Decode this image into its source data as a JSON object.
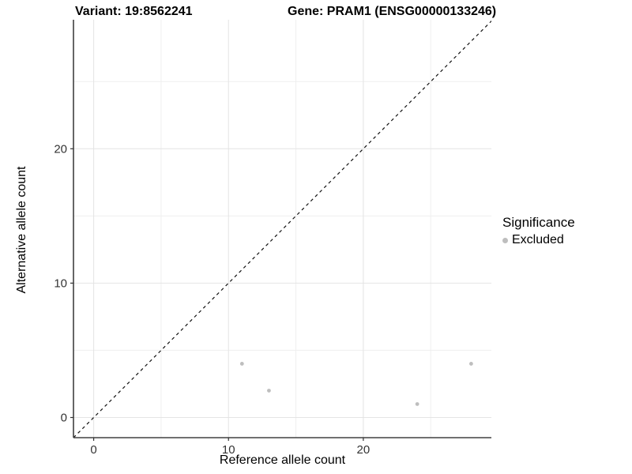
{
  "chart_data": {
    "type": "scatter",
    "titles": {
      "variant": "Variant: 19:8562241",
      "gene": "Gene: PRAM1 (ENSG00000133246)"
    },
    "xlabel": "Reference allele count",
    "ylabel": "Alternative allele count",
    "xlim": [
      -1.5,
      29.5
    ],
    "ylim": [
      -1.5,
      29.6
    ],
    "x_ticks": [
      0,
      10,
      20
    ],
    "y_ticks": [
      0,
      10,
      20
    ],
    "grid_major": [
      0,
      10,
      20
    ],
    "grid_minor": [
      5,
      15,
      25
    ],
    "grid_on": true,
    "series": [
      {
        "name": "Excluded",
        "color": "#BEBEBE",
        "points": [
          {
            "x": 11,
            "y": 4
          },
          {
            "x": 13,
            "y": 2
          },
          {
            "x": 24,
            "y": 1
          },
          {
            "x": 28,
            "y": 4
          }
        ]
      }
    ],
    "identity_line": {
      "equation": "y = x",
      "style": "dashed",
      "color": "#111111"
    },
    "legend": {
      "title": "Significance",
      "position": "right",
      "items": [
        {
          "label": "Excluded",
          "color": "#BEBEBE"
        }
      ]
    },
    "colors": {
      "grid_major": "#e4e4e4",
      "grid_minor": "#efefef",
      "axis_line": "#404040",
      "tick_mark": "#333333",
      "tick_label": "#333333"
    }
  }
}
